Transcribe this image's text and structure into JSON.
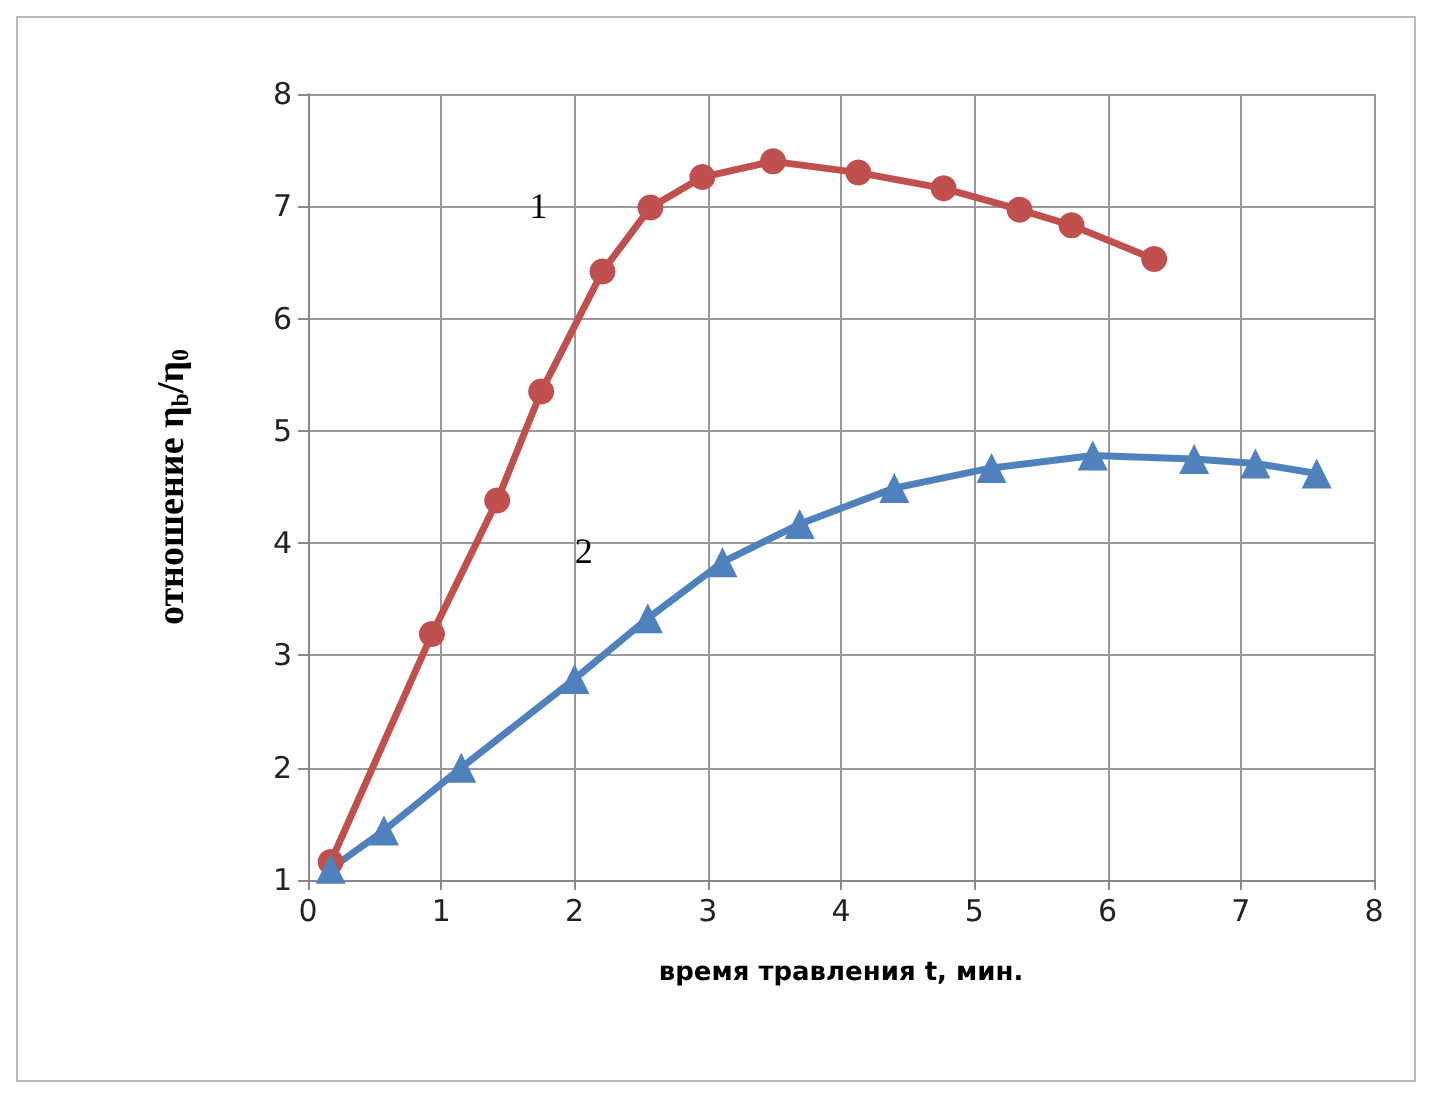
{
  "chart_data": {
    "type": "line",
    "xlabel": "время травления t, мин.",
    "ylabel": "отношение η$_{b}$/η$_{0}$",
    "xlim": [
      0,
      8
    ],
    "xticks": [
      0,
      1,
      2,
      3,
      4,
      5,
      6,
      7,
      8
    ],
    "ylim": [
      1,
      8
    ],
    "yticks": [
      1,
      2,
      3,
      4,
      5,
      6,
      7,
      8
    ],
    "grid": true,
    "line_style": "solid",
    "series": [
      {
        "name": "1",
        "color": "#c0504d",
        "marker": "circle",
        "x": [
          0.17,
          0.93,
          1.42,
          1.75,
          2.21,
          2.57,
          2.96,
          3.49,
          4.13,
          4.77,
          5.34,
          5.73,
          6.35
        ],
        "values": [
          1.16,
          3.19,
          4.38,
          5.35,
          6.42,
          6.99,
          7.26,
          7.4,
          7.3,
          7.16,
          6.97,
          6.83,
          6.53
        ]
      },
      {
        "name": "2",
        "color": "#4f81bd",
        "marker": "triangle",
        "x": [
          0.17,
          0.57,
          1.15,
          2.0,
          2.55,
          3.11,
          3.69,
          4.4,
          5.13,
          5.89,
          6.65,
          7.11,
          7.57
        ],
        "values": [
          1.1,
          1.44,
          2.0,
          2.79,
          3.33,
          3.83,
          4.17,
          4.49,
          4.67,
          4.78,
          4.75,
          4.71,
          4.62
        ]
      }
    ]
  }
}
